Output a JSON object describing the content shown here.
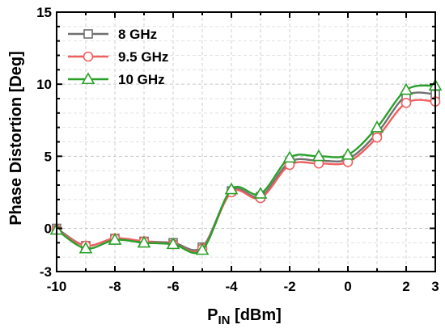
{
  "chart_data": {
    "type": "line",
    "xlabel": {
      "main": "P",
      "sub": "IN",
      "suffix": " [dBm]"
    },
    "ylabel": "Phase Distortion [Deg]",
    "xlim": [
      -10,
      3
    ],
    "ylim": [
      -3,
      15
    ],
    "xticks": [
      -10,
      -8,
      -6,
      -4,
      -2,
      0,
      2,
      3
    ],
    "yticks": [
      -3,
      0,
      5,
      10,
      15
    ],
    "grid": true,
    "legend_position": "top-left",
    "series": [
      {
        "name": "8 GHz",
        "color": "#707070",
        "marker": "square",
        "x": [
          -10,
          -9,
          -8,
          -7,
          -6,
          -5,
          -4,
          -3,
          -2,
          -1,
          0,
          1,
          2,
          3
        ],
        "y": [
          0.0,
          -1.2,
          -0.7,
          -0.9,
          -1.0,
          -1.3,
          2.6,
          2.2,
          4.6,
          4.7,
          4.8,
          6.6,
          9.2,
          9.3
        ]
      },
      {
        "name": "9.5 GHz",
        "color": "#f06060",
        "marker": "circle",
        "x": [
          -10,
          -9,
          -8,
          -7,
          -6,
          -5,
          -4,
          -3,
          -2,
          -1,
          0,
          1,
          2,
          3
        ],
        "y": [
          -0.1,
          -1.2,
          -0.7,
          -0.9,
          -1.1,
          -1.4,
          2.5,
          2.1,
          4.4,
          4.5,
          4.6,
          6.3,
          8.7,
          8.8
        ]
      },
      {
        "name": "10 GHz",
        "color": "#2aa02a",
        "marker": "triangle",
        "x": [
          -10,
          -9,
          -8,
          -7,
          -6,
          -5,
          -4,
          -3,
          -2,
          -1,
          0,
          1,
          2,
          3
        ],
        "y": [
          -0.1,
          -1.4,
          -0.8,
          -1.0,
          -1.1,
          -1.5,
          2.7,
          2.4,
          4.9,
          5.0,
          5.1,
          7.0,
          9.6,
          9.9
        ]
      }
    ]
  }
}
